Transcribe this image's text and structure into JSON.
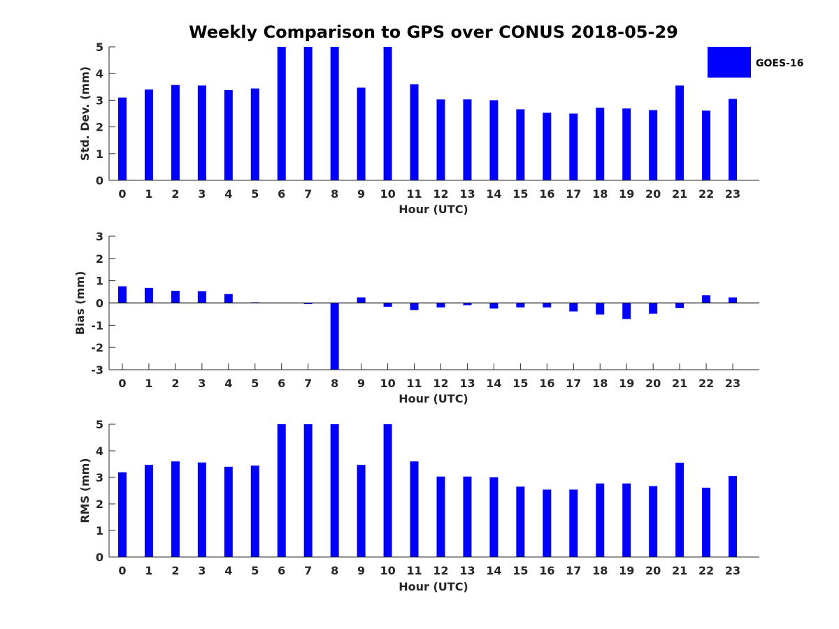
{
  "title": "Weekly Comparison to GPS over CONUS 2018-05-29",
  "legend": {
    "label": "GOES-16",
    "color": "#0000ff"
  },
  "chart_data": [
    {
      "type": "bar",
      "name": "std-dev",
      "xlabel": "Hour (UTC)",
      "ylabel": "Std. Dev. (mm)",
      "ylim": [
        0,
        5
      ],
      "yticks": [
        0,
        1,
        2,
        3,
        4,
        5
      ],
      "categories": [
        "0",
        "1",
        "2",
        "3",
        "4",
        "5",
        "6",
        "7",
        "8",
        "9",
        "10",
        "11",
        "12",
        "13",
        "14",
        "15",
        "16",
        "17",
        "18",
        "19",
        "20",
        "21",
        "22",
        "23"
      ],
      "series": [
        {
          "name": "GOES-16",
          "color": "#0000ff",
          "values": [
            3.1,
            3.4,
            3.57,
            3.55,
            3.38,
            3.44,
            5.0,
            5.0,
            5.0,
            3.47,
            5.0,
            3.6,
            3.03,
            3.03,
            3.0,
            2.66,
            2.53,
            2.5,
            2.72,
            2.69,
            2.63,
            3.55,
            2.61,
            3.05
          ]
        }
      ]
    },
    {
      "type": "bar",
      "name": "bias",
      "xlabel": "Hour (UTC)",
      "ylabel": "Bias (mm)",
      "ylim": [
        -3,
        3
      ],
      "yticks": [
        -3,
        -2,
        -1,
        0,
        1,
        2,
        3
      ],
      "zero_line": true,
      "categories": [
        "0",
        "1",
        "2",
        "3",
        "4",
        "5",
        "6",
        "7",
        "8",
        "9",
        "10",
        "11",
        "12",
        "13",
        "14",
        "15",
        "16",
        "17",
        "18",
        "19",
        "20",
        "21",
        "22",
        "23"
      ],
      "series": [
        {
          "name": "GOES-16",
          "color": "#0000ff",
          "values": [
            0.75,
            0.68,
            0.55,
            0.53,
            0.4,
            0.03,
            0.0,
            -0.05,
            -3.0,
            0.25,
            -0.17,
            -0.32,
            -0.2,
            -0.1,
            -0.25,
            -0.2,
            -0.2,
            -0.38,
            -0.52,
            -0.72,
            -0.48,
            -0.23,
            0.35,
            0.25
          ]
        }
      ]
    },
    {
      "type": "bar",
      "name": "rms",
      "xlabel": "Hour (UTC)",
      "ylabel": "RMS (mm)",
      "ylim": [
        0,
        5
      ],
      "yticks": [
        0,
        1,
        2,
        3,
        4,
        5
      ],
      "categories": [
        "0",
        "1",
        "2",
        "3",
        "4",
        "5",
        "6",
        "7",
        "8",
        "9",
        "10",
        "11",
        "12",
        "13",
        "14",
        "15",
        "16",
        "17",
        "18",
        "19",
        "20",
        "21",
        "22",
        "23"
      ],
      "series": [
        {
          "name": "GOES-16",
          "color": "#0000ff",
          "values": [
            3.19,
            3.47,
            3.6,
            3.56,
            3.4,
            3.44,
            5.0,
            5.0,
            5.0,
            3.47,
            5.0,
            3.6,
            3.03,
            3.03,
            3.0,
            2.65,
            2.54,
            2.54,
            2.77,
            2.77,
            2.67,
            3.55,
            2.61,
            3.05
          ]
        }
      ]
    }
  ]
}
